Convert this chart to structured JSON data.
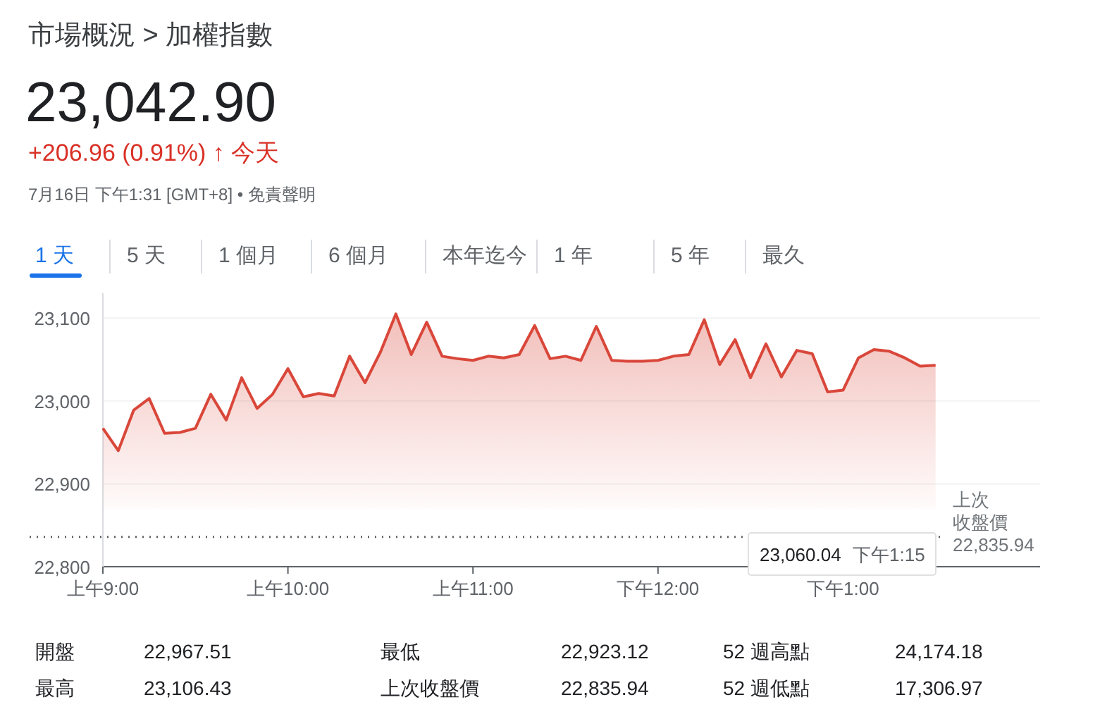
{
  "chart_data": {
    "type": "area",
    "title": "市場概況 > 加權指數",
    "subtitle": "23,042.90",
    "categories": [
      "上午9:00",
      null,
      null,
      null,
      null,
      null,
      null,
      null,
      null,
      null,
      null,
      null,
      "上午10:00",
      null,
      null,
      null,
      null,
      null,
      null,
      null,
      null,
      null,
      null,
      null,
      "上午11:00",
      null,
      null,
      null,
      null,
      null,
      null,
      null,
      null,
      null,
      null,
      null,
      "下午12:00",
      null,
      null,
      null,
      null,
      null,
      null,
      null,
      null,
      null,
      null,
      null,
      "下午1:00",
      null,
      null,
      null,
      null,
      null,
      null
    ],
    "series": [
      {
        "color": "#d9473a",
        "values": [
          22967,
          22940,
          22989,
          23003,
          22961,
          22962,
          22967,
          23008,
          22977,
          23028,
          22991,
          23008,
          23039,
          23005,
          23009,
          23006,
          23054,
          23022,
          23059,
          23105,
          23056,
          23095,
          23054,
          23051,
          23049,
          23054,
          23052,
          23056,
          23091,
          23051,
          23054,
          23049,
          23090,
          23049,
          23048,
          23048,
          23049,
          23054,
          23056,
          23098,
          23044,
          23074,
          23028,
          23069,
          23029,
          23061,
          23057,
          23011,
          23013,
          23052,
          23062,
          23060,
          23052,
          23042,
          23043
        ]
      }
    ],
    "ylim": [
      22800,
      23130
    ],
    "yticks": [
      {
        "value": 22800,
        "label": "22,800"
      },
      {
        "value": 22900,
        "label": "22,900"
      },
      {
        "value": 23000,
        "label": "23,000"
      },
      {
        "value": 23100,
        "label": "23,100"
      }
    ],
    "grid": "y",
    "marker": "none",
    "line_style": "solid",
    "ref_lines": [
      {
        "axis": "y",
        "value": 22835.94,
        "label": "上次收盤價 22,835.94",
        "line_style": "dotted",
        "color": "#5f6368"
      }
    ],
    "annotations": [
      "+206.96 (0.91%) ↑ 今天",
      "7月16日 下午1:31 [GMT+8] • 免責聲明",
      "1 天",
      "5 天",
      "1 個月",
      "6 個月",
      "本年迄今",
      "1 年",
      "5 年",
      "最久",
      "開盤",
      "22,967.51",
      "最低",
      "22,923.12",
      "52 週高點",
      "24,174.18",
      "最高",
      "23,106.43",
      "上次收盤價",
      "22,835.94",
      "52 週低點",
      "17,306.97",
      "23,060.04 下午1:15"
    ]
  }
}
